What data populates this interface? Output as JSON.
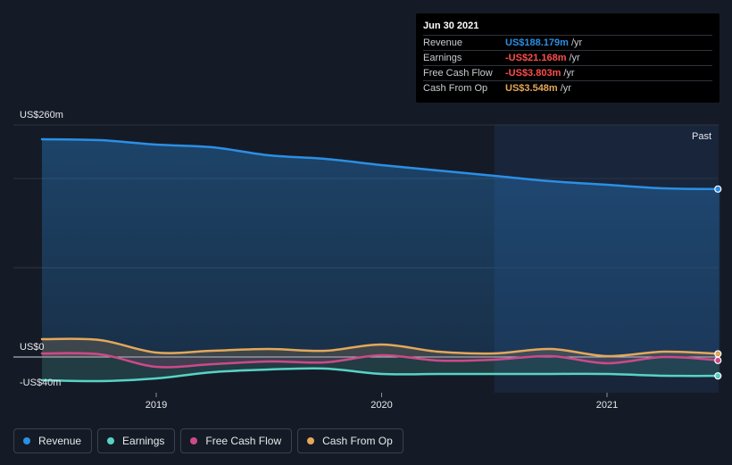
{
  "colors": {
    "background": "#151b26",
    "revenue": "#2b8fe5",
    "earnings": "#58d3c5",
    "fcf": "#cc4a8a",
    "cfo": "#e4a85a",
    "negative": "#ff4d4d"
  },
  "tooltip": {
    "date": "Jun 30 2021",
    "rows": [
      {
        "label": "Revenue",
        "value": "US$188.179m",
        "unit": "/yr",
        "color": "#2b8fe5"
      },
      {
        "label": "Earnings",
        "value": "-US$21.168m",
        "unit": "/yr",
        "color": "#ff4d4d"
      },
      {
        "label": "Free Cash Flow",
        "value": "-US$3.803m",
        "unit": "/yr",
        "color": "#ff4d4d"
      },
      {
        "label": "Cash From Op",
        "value": "US$3.548m",
        "unit": "/yr",
        "color": "#e4a85a"
      }
    ]
  },
  "legend": [
    {
      "label": "Revenue",
      "color": "#2b8fe5"
    },
    {
      "label": "Earnings",
      "color": "#58d3c5"
    },
    {
      "label": "Free Cash Flow",
      "color": "#cc4a8a"
    },
    {
      "label": "Cash From Op",
      "color": "#e4a85a"
    }
  ],
  "chart_data": {
    "type": "area",
    "ylim": [
      -40,
      260
    ],
    "y_labels": [
      "US$260m",
      "US$0",
      "-US$40m"
    ],
    "x_tick_labels": [
      "2019",
      "2020",
      "2021"
    ],
    "past_label": "Past",
    "x": [
      2018.5,
      2018.75,
      2019.0,
      2019.25,
      2019.5,
      2019.75,
      2020.0,
      2020.25,
      2020.5,
      2020.75,
      2021.0,
      2021.25,
      2021.5
    ],
    "x_range": [
      2018.37,
      2021.5
    ],
    "past_start": 2020.5,
    "series": [
      {
        "name": "Revenue",
        "color": "#2b8fe5",
        "values": [
          244,
          243,
          238,
          235,
          226,
          222,
          215,
          209,
          203,
          197,
          193,
          189,
          188.179
        ]
      },
      {
        "name": "Earnings",
        "color": "#58d3c5",
        "values": [
          -26,
          -27,
          -24,
          -17,
          -14,
          -13,
          -19,
          -19,
          -19,
          -19,
          -19,
          -21,
          -21.168
        ]
      },
      {
        "name": "Free Cash Flow",
        "color": "#cc4a8a",
        "values": [
          4,
          3,
          -11,
          -8,
          -5,
          -6,
          2,
          -4,
          -3,
          1,
          -7,
          0,
          -3.803
        ]
      },
      {
        "name": "Cash From Op",
        "color": "#e4a85a",
        "values": [
          20,
          19,
          5,
          7,
          9,
          7,
          14,
          6,
          4,
          9,
          1,
          6,
          3.548
        ]
      }
    ]
  }
}
